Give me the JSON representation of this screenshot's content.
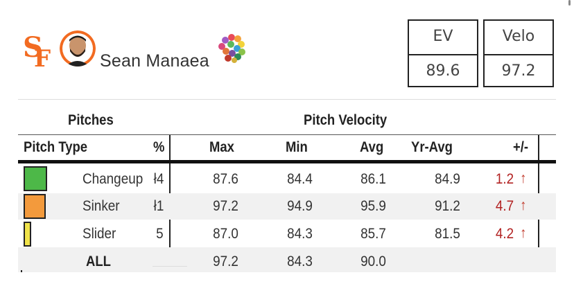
{
  "player": {
    "name": "Sean Manaea"
  },
  "icons": {
    "team": "sf-giants-logo",
    "avatar": "player-headshot",
    "palette": "color-palette-icon"
  },
  "stats": [
    {
      "label": "EV",
      "value": "89.6"
    },
    {
      "label": "Velo",
      "value": "97.2"
    }
  ],
  "table": {
    "group_headers": {
      "pitches": "Pitches",
      "velocity": "Pitch Velocity"
    },
    "columns": {
      "pitch_type": "Pitch Type",
      "pct": "%",
      "max": "Max",
      "min": "Min",
      "avg": "Avg",
      "yr_avg": "Yr-Avg",
      "diff": "+/-"
    },
    "rows": [
      {
        "pitch": "Changeup",
        "pct": "ł4",
        "max": "87.6",
        "min": "84.4",
        "avg": "86.1",
        "yr_avg": "84.9",
        "diff": "1.2",
        "arrow": "↑",
        "color": "#4db848"
      },
      {
        "pitch": "Sinker",
        "pct": "ł1",
        "max": "97.2",
        "min": "94.9",
        "avg": "95.9",
        "yr_avg": "91.2",
        "diff": "4.7",
        "arrow": "↑",
        "color": "#f39a3c"
      },
      {
        "pitch": "Slider",
        "pct": "5",
        "max": "87.0",
        "min": "84.3",
        "avg": "85.7",
        "yr_avg": "81.5",
        "diff": "4.2",
        "arrow": "↑",
        "color": "#f0e34a"
      }
    ],
    "all": {
      "label": "ALL",
      "max": "97.2",
      "min": "84.3",
      "avg": "90.0"
    }
  },
  "colors": {
    "diff_text": "#b22222",
    "arrow": "#c0392b",
    "team_orange": "#f26b21"
  }
}
